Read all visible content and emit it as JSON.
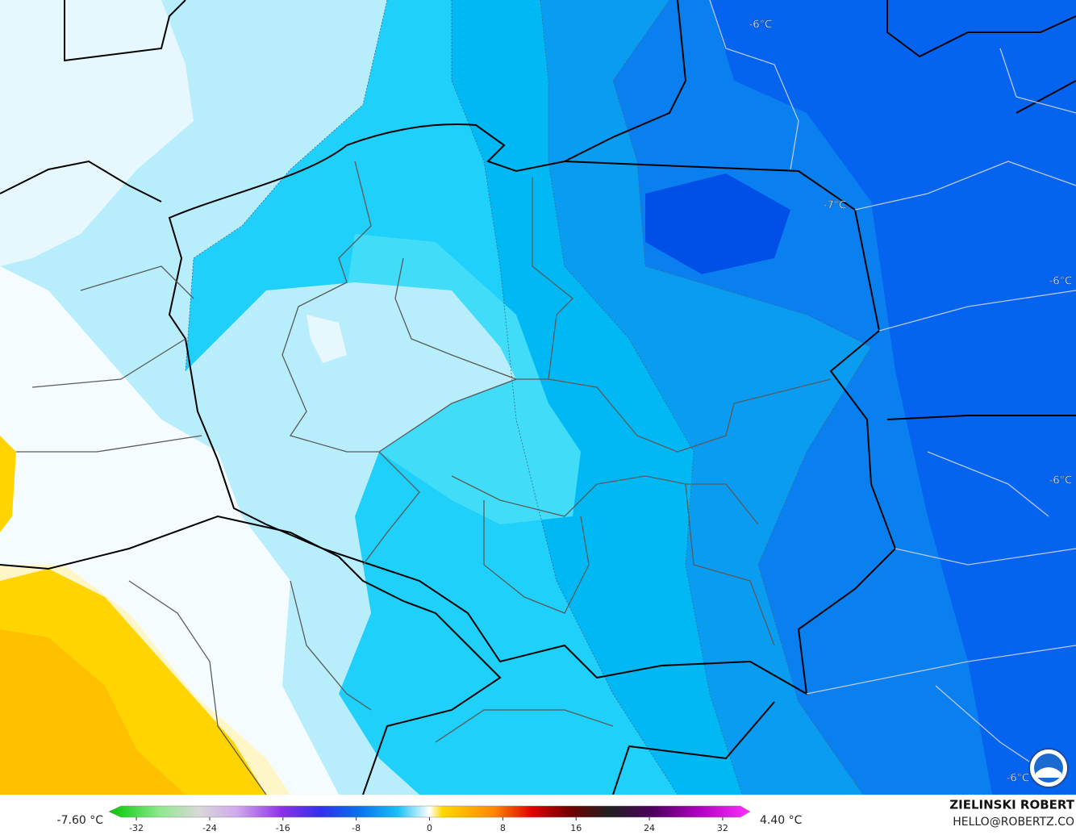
{
  "contour_labels": [
    "-6°C",
    "-7°C",
    "-6°C",
    "-6°C",
    "-6°C"
  ],
  "colorbar": {
    "min_label": "-7.60 °C",
    "max_label": "4.40 °C",
    "lim": [
      -35,
      35
    ],
    "ticks": [
      -32,
      -24,
      -16,
      -8,
      0,
      8,
      16,
      24,
      32
    ]
  },
  "credit": {
    "name": "ZIELINSKI ROBERT",
    "email": "HELLO@ROBERTZ.CO"
  }
}
